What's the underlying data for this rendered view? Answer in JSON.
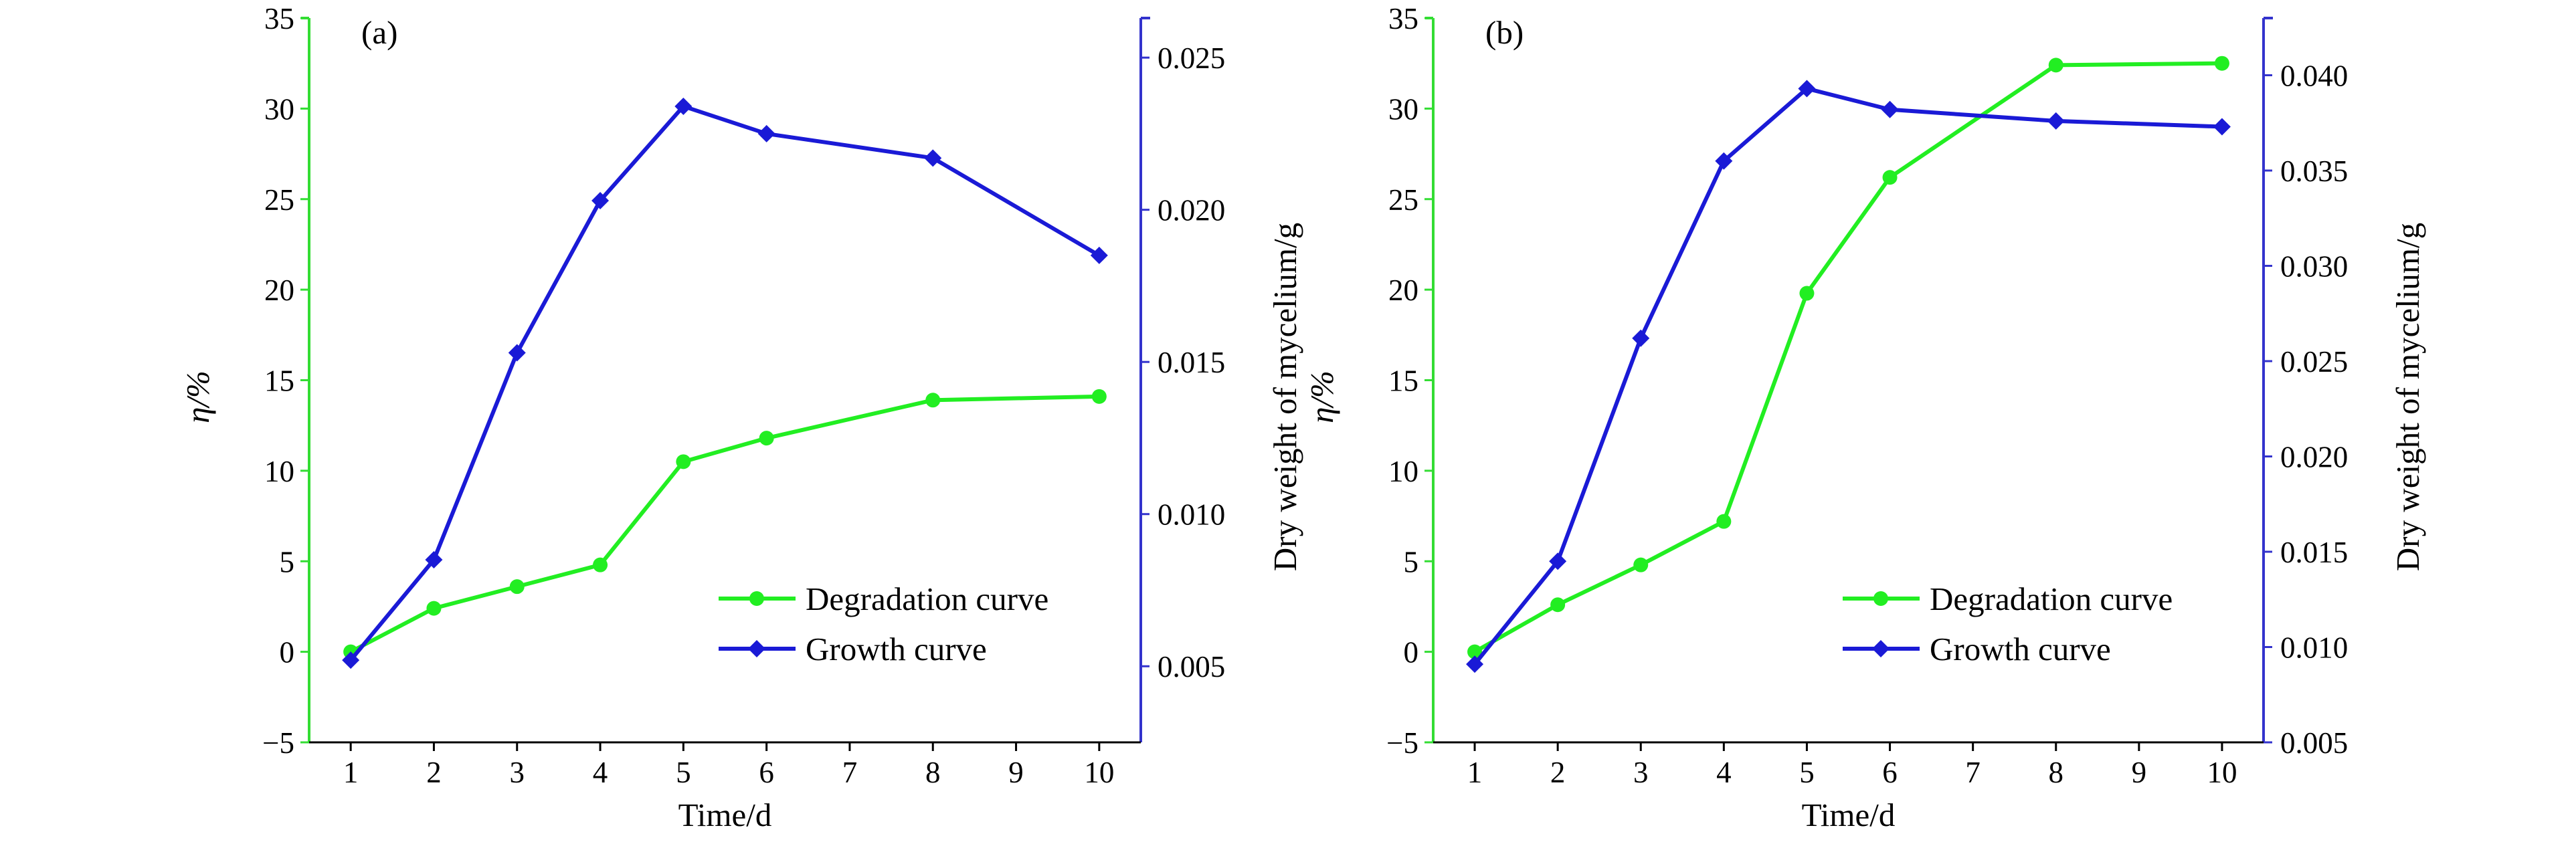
{
  "colors": {
    "degradation": "#22ee22",
    "growth": "#1a1ad6",
    "left_axis": "#33dd33",
    "right_axis": "#3333cc",
    "bottom_axis": "#000000"
  },
  "chart_data": [
    {
      "type": "line",
      "panel_label": "(a)",
      "xlabel": "Time/d",
      "ylabel_left": "η/%",
      "ylabel_right": "Dry weight of mycelium/g",
      "x_ticks": [
        "1",
        "2",
        "3",
        "4",
        "5",
        "6",
        "7",
        "8",
        "9",
        "10"
      ],
      "xlim": [
        0.5,
        10.5
      ],
      "ylim_left": [
        -5,
        35
      ],
      "ylim_right": [
        0.0025,
        0.0263
      ],
      "y_ticks_left": [
        "−5",
        "0",
        "5",
        "10",
        "15",
        "20",
        "25",
        "30",
        "35"
      ],
      "y_ticks_right": [
        "0.005",
        "0.010",
        "0.015",
        "0.020",
        "0.025"
      ],
      "legend_position": "lower-right",
      "grid": false,
      "series": [
        {
          "name": "Degradation curve",
          "axis": "left",
          "marker": "circle",
          "x": [
            1,
            2,
            3,
            4,
            5,
            6,
            8,
            10
          ],
          "y": [
            0,
            2.4,
            3.6,
            4.8,
            10.5,
            11.8,
            13.9,
            14.1
          ]
        },
        {
          "name": "Growth curve",
          "axis": "right",
          "marker": "diamond",
          "x": [
            1,
            2,
            3,
            4,
            5,
            6,
            8,
            10
          ],
          "y": [
            0.0052,
            0.0085,
            0.0153,
            0.0203,
            0.0234,
            0.0225,
            0.0217,
            0.0185
          ]
        }
      ]
    },
    {
      "type": "line",
      "panel_label": "(b)",
      "xlabel": "Time/d",
      "ylabel_left": "η/%",
      "ylabel_right": "Dry weight of mycelium/g",
      "x_ticks": [
        "1",
        "2",
        "3",
        "4",
        "5",
        "6",
        "7",
        "8",
        "9",
        "10"
      ],
      "xlim": [
        0.5,
        10.5
      ],
      "ylim_left": [
        -5,
        35
      ],
      "ylim_right": [
        0.005,
        0.043
      ],
      "y_ticks_left": [
        "−5",
        "0",
        "5",
        "10",
        "15",
        "20",
        "25",
        "30",
        "35"
      ],
      "y_ticks_right": [
        "0.005",
        "0.010",
        "0.015",
        "0.020",
        "0.025",
        "0.030",
        "0.035",
        "0.040"
      ],
      "legend_position": "lower-right",
      "grid": false,
      "series": [
        {
          "name": "Degradation curve",
          "axis": "left",
          "marker": "circle",
          "x": [
            1,
            2,
            3,
            4,
            5,
            6,
            8,
            10
          ],
          "y": [
            0,
            2.6,
            4.8,
            7.2,
            19.8,
            26.2,
            32.4,
            32.5
          ]
        },
        {
          "name": "Growth curve",
          "axis": "right",
          "marker": "diamond",
          "x": [
            1,
            2,
            3,
            4,
            5,
            6,
            8,
            10
          ],
          "y": [
            0.0091,
            0.0145,
            0.0262,
            0.0355,
            0.0393,
            0.0382,
            0.0376,
            0.0373
          ]
        }
      ]
    }
  ]
}
